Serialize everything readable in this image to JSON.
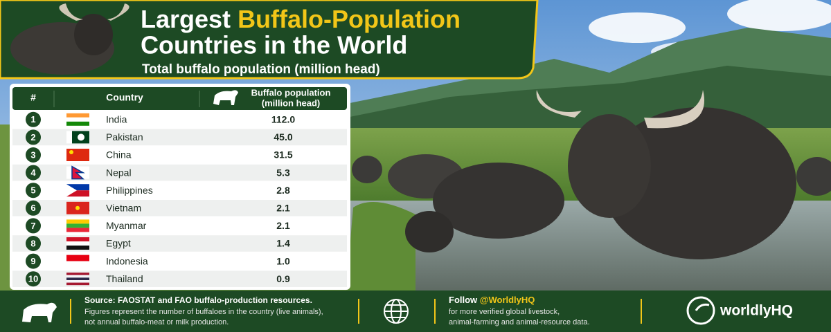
{
  "header": {
    "title_lead": "Largest",
    "title_highlight": "Buffalo-Population",
    "title_line2": "Countries in the World",
    "subtitle": "Total buffalo population (million head)"
  },
  "table": {
    "columns": [
      "#",
      "Country",
      [
        "Buffalo population",
        "(million head)"
      ]
    ],
    "rows": [
      [
        "1",
        "India",
        "112.0"
      ],
      [
        "2",
        "Pakistan",
        "45.0"
      ],
      [
        "3",
        "China",
        "31.5"
      ],
      [
        "4",
        "Nepal",
        "5.3"
      ],
      [
        "5",
        "Philippines",
        "2.8"
      ],
      [
        "6",
        "Vietnam",
        "2.1"
      ],
      [
        "7",
        "Myanmar",
        "2.1"
      ],
      [
        "8",
        "Egypt",
        "1.4"
      ],
      [
        "9",
        "Indonesia",
        "1.0"
      ],
      [
        "10",
        "Thailand",
        "0.9"
      ]
    ]
  },
  "footer": {
    "source": "Source: FAOSTAT and FAO buffalo-production resources.",
    "note": [
      "Figures represent the number of buffaloes in the country (live animals),",
      "not annual buffalo-meat or milk production."
    ],
    "follow_lead": "Follow",
    "follow_handle": "@WorldlyHQ",
    "follow_text": [
      "for more verified global livestock,",
      "animal-farming and animal-resource data."
    ],
    "brand": "worldlyHQ"
  }
}
